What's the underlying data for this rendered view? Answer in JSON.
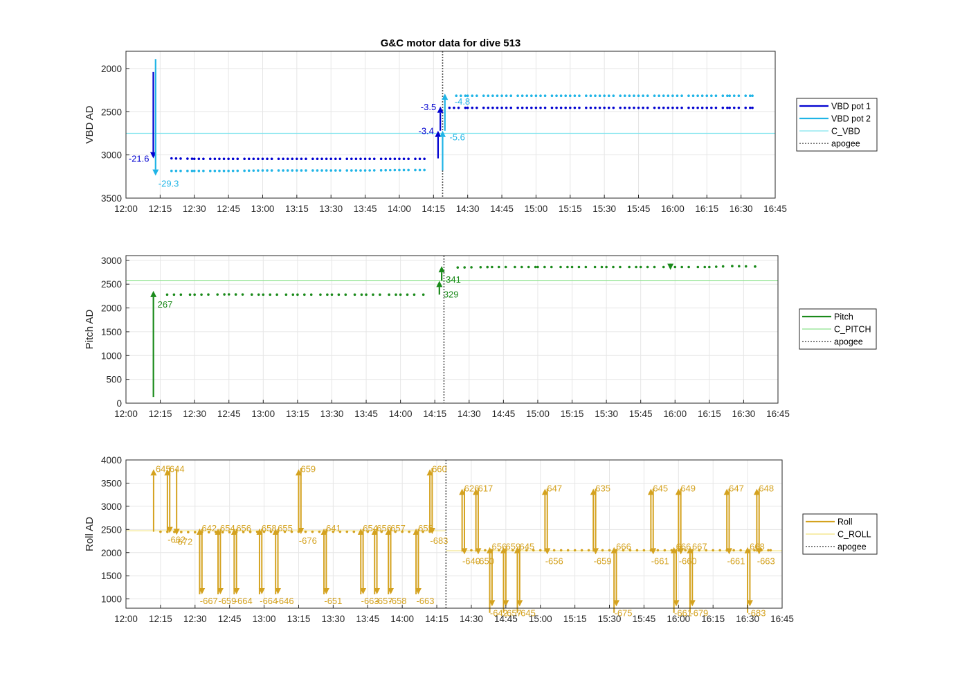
{
  "chart_data": [
    {
      "type": "line",
      "panel": "vbd",
      "title": "G&C motor data for dive 513",
      "ylabel": "VBD AD",
      "y_reversed": true,
      "ylim": [
        1800,
        3500
      ],
      "yticks": [
        2000,
        2500,
        3000,
        3500
      ],
      "xlim": [
        "12:00",
        "16:45"
      ],
      "xticks": [
        "12:00",
        "12:15",
        "12:30",
        "12:45",
        "13:00",
        "13:15",
        "13:30",
        "13:45",
        "14:00",
        "14:15",
        "14:30",
        "14:45",
        "15:00",
        "15:15",
        "15:30",
        "15:45",
        "16:00",
        "16:15",
        "16:30",
        "16:45"
      ],
      "grid": true,
      "legend_placement": "outside-right",
      "legend": [
        "VBD pot 1",
        "VBD pot 2",
        "C_VBD",
        "apogee"
      ],
      "colors": {
        "pot1": "#0000d0",
        "pot2": "#1fb4e6",
        "c_vbd": "#7fe3ee",
        "apogee": "#555555"
      },
      "c_value": 2750,
      "apogee": "14:19",
      "series": [
        {
          "name": "VBD pot 1",
          "x": [
            "12:20",
            "12:30",
            "12:45",
            "13:00",
            "13:15",
            "13:30",
            "13:45",
            "14:00",
            "14:13",
            "14:22",
            "14:30",
            "14:45",
            "15:00",
            "15:15",
            "15:30",
            "15:45",
            "16:00",
            "16:15",
            "16:25",
            "16:35"
          ],
          "values": [
            3040,
            3045,
            3045,
            3045,
            3045,
            3045,
            3045,
            3045,
            3045,
            2455,
            2455,
            2455,
            2455,
            2455,
            2455,
            2455,
            2455,
            2455,
            2455,
            2455
          ]
        },
        {
          "name": "VBD pot 2",
          "x": [
            "12:20",
            "12:30",
            "12:45",
            "13:00",
            "13:15",
            "13:30",
            "13:45",
            "14:00",
            "14:13",
            "14:25",
            "14:30",
            "14:45",
            "15:00",
            "15:15",
            "15:30",
            "15:45",
            "16:00",
            "16:15",
            "16:25",
            "16:35"
          ],
          "values": [
            3185,
            3185,
            3185,
            3180,
            3180,
            3180,
            3180,
            3175,
            3175,
            2315,
            2315,
            2315,
            2315,
            2315,
            2315,
            2315,
            2315,
            2315,
            2315,
            2315
          ]
        }
      ],
      "moves": [
        {
          "series": "pot1",
          "x": "12:12",
          "from": 2040,
          "to": 3040,
          "label": "-21.6",
          "label_side": "left"
        },
        {
          "series": "pot2",
          "x": "12:13",
          "from": 1890,
          "to": 3240,
          "label": "-29.3",
          "label_side": "below-right"
        },
        {
          "series": "pot1",
          "x": "14:17",
          "from": 3040,
          "to": 2720,
          "label": "-3.4",
          "label_side": "left"
        },
        {
          "series": "pot1",
          "x": "14:18",
          "from": 2720,
          "to": 2440,
          "label": "-3.5",
          "label_side": "left"
        },
        {
          "series": "pot2",
          "x": "14:19",
          "from": 3180,
          "to": 2720,
          "label": "-5.6",
          "label_side": "right-below"
        },
        {
          "series": "pot2",
          "x": "14:20",
          "from": 2720,
          "to": 2290,
          "label": "-4.8",
          "label_side": "right"
        }
      ]
    },
    {
      "type": "line",
      "panel": "pitch",
      "ylabel": "Pitch AD",
      "ylim": [
        0,
        3100
      ],
      "yticks": [
        0,
        500,
        1000,
        1500,
        2000,
        2500,
        3000
      ],
      "xlim": [
        "12:00",
        "16:45"
      ],
      "xticks": [
        "12:00",
        "12:15",
        "12:30",
        "12:45",
        "13:00",
        "13:15",
        "13:30",
        "13:45",
        "14:00",
        "14:15",
        "14:30",
        "14:45",
        "15:00",
        "15:15",
        "15:30",
        "15:45",
        "16:00",
        "16:15",
        "16:30",
        "16:45"
      ],
      "grid": true,
      "legend_placement": "outside-right",
      "legend": [
        "Pitch",
        "C_PITCH",
        "apogee"
      ],
      "colors": {
        "pitch": "#1a8a1a",
        "c_pitch": "#8ce28c",
        "apogee": "#555555"
      },
      "c_value": 2580,
      "apogee": "14:19",
      "series": [
        {
          "name": "Pitch",
          "x": [
            "12:18",
            "12:30",
            "12:45",
            "13:00",
            "13:15",
            "13:30",
            "13:45",
            "14:00",
            "14:12",
            "14:25",
            "14:40",
            "15:00",
            "15:15",
            "15:30",
            "15:45",
            "16:00",
            "16:15",
            "16:25",
            "16:35"
          ],
          "values": [
            2280,
            2280,
            2285,
            2280,
            2280,
            2280,
            2280,
            2280,
            2280,
            2850,
            2860,
            2860,
            2860,
            2860,
            2860,
            2860,
            2860,
            2880,
            2870
          ]
        }
      ],
      "moves": [
        {
          "x": "12:12",
          "from": 130,
          "to": 2360,
          "label": "267"
        },
        {
          "x": "14:17",
          "from": 2280,
          "to": 2570,
          "label": "329"
        },
        {
          "x": "14:18",
          "from": 2570,
          "to": 2880,
          "label": "341"
        },
        {
          "x": "15:58",
          "from": 2880,
          "to": 2800,
          "label": ""
        }
      ]
    },
    {
      "type": "line",
      "panel": "roll",
      "ylabel": "Roll AD",
      "ylim": [
        800,
        4000
      ],
      "yticks": [
        1000,
        1500,
        2000,
        2500,
        3000,
        3500,
        4000
      ],
      "xlim": [
        "12:00",
        "16:45"
      ],
      "xticks": [
        "12:00",
        "12:15",
        "12:30",
        "12:45",
        "13:00",
        "13:15",
        "13:30",
        "13:45",
        "14:00",
        "14:15",
        "14:30",
        "14:45",
        "15:00",
        "15:15",
        "15:30",
        "15:45",
        "16:00",
        "16:15",
        "16:30",
        "16:45"
      ],
      "grid": true,
      "legend_placement": "outside-right",
      "legend": [
        "Roll",
        "C_ROLL",
        "apogee"
      ],
      "colors": {
        "roll": "#d4a21f",
        "c_roll": "#f2e27a",
        "apogee": "#555555"
      },
      "c_before": 2470,
      "c_after": 2040,
      "apogee": "14:19",
      "series": [
        {
          "name": "Roll",
          "x": [
            "12:15",
            "12:30",
            "12:45",
            "13:00",
            "13:15",
            "13:30",
            "13:45",
            "14:00",
            "14:15",
            "14:30",
            "14:45",
            "15:00",
            "15:15",
            "15:30",
            "15:45",
            "16:00",
            "16:15",
            "16:30",
            "16:40"
          ],
          "values": [
            2450,
            2440,
            2440,
            2450,
            2450,
            2450,
            2450,
            2450,
            2450,
            2050,
            2050,
            2050,
            2050,
            2050,
            2050,
            2050,
            2050,
            2050,
            2050
          ]
        }
      ],
      "spikes": [
        {
          "x": "12:12",
          "dir": "up",
          "extreme": 3800,
          "label": "645"
        },
        {
          "x": "12:18",
          "dir": "up",
          "extreme": 3800,
          "label": "644"
        },
        {
          "x": "12:19",
          "dir": "down",
          "extreme": 2420,
          "label": "-662"
        },
        {
          "x": "12:22",
          "dir": "down",
          "extreme": 2380,
          "label": "-672"
        },
        {
          "x": "12:32",
          "dir": "up",
          "extreme": 2520,
          "label": "642"
        },
        {
          "x": "12:33",
          "dir": "down",
          "extreme": 1100,
          "label": "-667"
        },
        {
          "x": "12:40",
          "dir": "up",
          "extreme": 2520,
          "label": "654"
        },
        {
          "x": "12:41",
          "dir": "down",
          "extreme": 1100,
          "label": "-659"
        },
        {
          "x": "12:47",
          "dir": "up",
          "extreme": 2520,
          "label": "656"
        },
        {
          "x": "12:48",
          "dir": "down",
          "extreme": 1100,
          "label": "-664"
        },
        {
          "x": "12:58",
          "dir": "up",
          "extreme": 2520,
          "label": "658"
        },
        {
          "x": "12:59",
          "dir": "down",
          "extreme": 1100,
          "label": "-664"
        },
        {
          "x": "13:05",
          "dir": "up",
          "extreme": 2520,
          "label": "655"
        },
        {
          "x": "13:06",
          "dir": "down",
          "extreme": 1100,
          "label": "-646"
        },
        {
          "x": "13:15",
          "dir": "up",
          "extreme": 3800,
          "label": "659"
        },
        {
          "x": "13:16",
          "dir": "down",
          "extreme": 2400,
          "label": "-676"
        },
        {
          "x": "13:26",
          "dir": "up",
          "extreme": 2520,
          "label": "641"
        },
        {
          "x": "13:27",
          "dir": "down",
          "extreme": 1100,
          "label": "-651"
        },
        {
          "x": "13:42",
          "dir": "up",
          "extreme": 2520,
          "label": "654"
        },
        {
          "x": "13:43",
          "dir": "down",
          "extreme": 1100,
          "label": "-663"
        },
        {
          "x": "13:48",
          "dir": "up",
          "extreme": 2520,
          "label": "656"
        },
        {
          "x": "13:49",
          "dir": "down",
          "extreme": 1100,
          "label": "-657"
        },
        {
          "x": "13:54",
          "dir": "up",
          "extreme": 2520,
          "label": "657"
        },
        {
          "x": "13:55",
          "dir": "down",
          "extreme": 1100,
          "label": "-658"
        },
        {
          "x": "14:06",
          "dir": "up",
          "extreme": 2520,
          "label": "655"
        },
        {
          "x": "14:07",
          "dir": "down",
          "extreme": 1100,
          "label": "-663"
        },
        {
          "x": "14:12",
          "dir": "up",
          "extreme": 3800,
          "label": "660"
        },
        {
          "x": "14:13",
          "dir": "down",
          "extreme": 2400,
          "label": "-683"
        },
        {
          "x": "14:26",
          "dir": "up",
          "extreme": 3380,
          "label": "626"
        },
        {
          "x": "14:27",
          "dir": "down",
          "extreme": 1960,
          "label": "-640"
        },
        {
          "x": "14:32",
          "dir": "up",
          "extreme": 3380,
          "label": "617"
        },
        {
          "x": "14:33",
          "dir": "down",
          "extreme": 1960,
          "label": "-650"
        },
        {
          "x": "14:38",
          "dir": "up",
          "extreme": 2120,
          "label": "656"
        },
        {
          "x": "14:39",
          "dir": "down",
          "extreme": 840,
          "label": "-642"
        },
        {
          "x": "14:44",
          "dir": "up",
          "extreme": 2120,
          "label": "659"
        },
        {
          "x": "14:45",
          "dir": "down",
          "extreme": 840,
          "label": "-657"
        },
        {
          "x": "14:50",
          "dir": "up",
          "extreme": 2120,
          "label": "645"
        },
        {
          "x": "14:51",
          "dir": "down",
          "extreme": 840,
          "label": "-645"
        },
        {
          "x": "15:02",
          "dir": "up",
          "extreme": 3380,
          "label": "647"
        },
        {
          "x": "15:03",
          "dir": "down",
          "extreme": 1960,
          "label": "-656"
        },
        {
          "x": "15:23",
          "dir": "up",
          "extreme": 3380,
          "label": "635"
        },
        {
          "x": "15:24",
          "dir": "down",
          "extreme": 1960,
          "label": "-659"
        },
        {
          "x": "15:32",
          "dir": "up",
          "extreme": 2120,
          "label": "666"
        },
        {
          "x": "15:33",
          "dir": "down",
          "extreme": 840,
          "label": "-675"
        },
        {
          "x": "15:48",
          "dir": "up",
          "extreme": 3380,
          "label": "645"
        },
        {
          "x": "15:49",
          "dir": "down",
          "extreme": 1960,
          "label": "-661"
        },
        {
          "x": "15:58",
          "dir": "up",
          "extreme": 2120,
          "label": "666"
        },
        {
          "x": "15:59",
          "dir": "down",
          "extreme": 840,
          "label": "-661"
        },
        {
          "x": "16:00",
          "dir": "up",
          "extreme": 3380,
          "label": "649"
        },
        {
          "x": "16:01",
          "dir": "down",
          "extreme": 1960,
          "label": "-660"
        },
        {
          "x": "16:05",
          "dir": "up",
          "extreme": 2120,
          "label": "667"
        },
        {
          "x": "16:06",
          "dir": "down",
          "extreme": 840,
          "label": "-679"
        },
        {
          "x": "16:21",
          "dir": "up",
          "extreme": 3380,
          "label": "647"
        },
        {
          "x": "16:22",
          "dir": "down",
          "extreme": 1960,
          "label": "-661"
        },
        {
          "x": "16:30",
          "dir": "up",
          "extreme": 2120,
          "label": "668"
        },
        {
          "x": "16:31",
          "dir": "down",
          "extreme": 840,
          "label": "-683"
        },
        {
          "x": "16:34",
          "dir": "up",
          "extreme": 3380,
          "label": "648"
        },
        {
          "x": "16:35",
          "dir": "down",
          "extreme": 1960,
          "label": "-663"
        }
      ]
    }
  ]
}
